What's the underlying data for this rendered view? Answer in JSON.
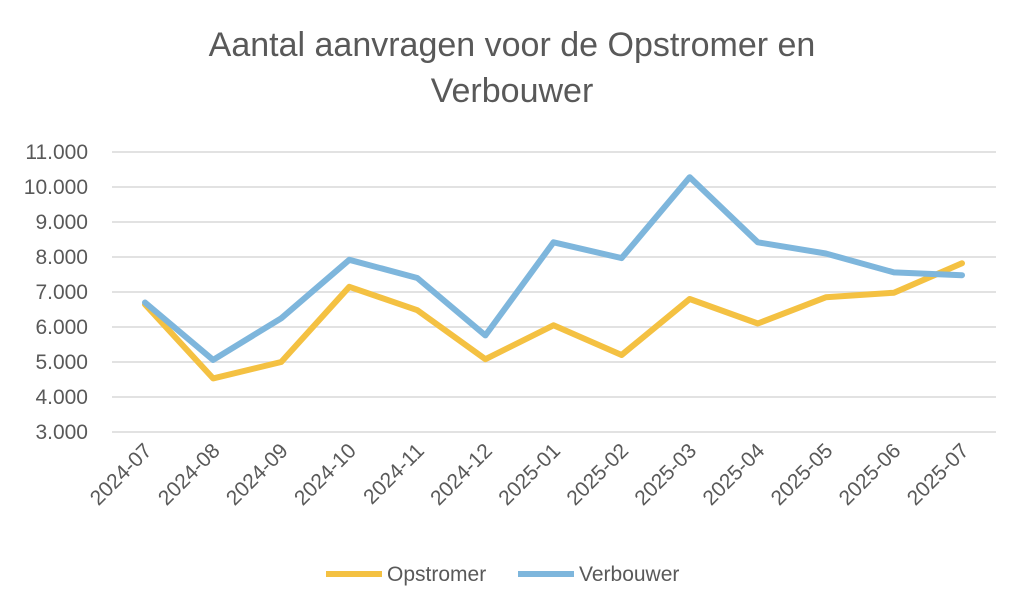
{
  "chart_data": {
    "type": "line",
    "title_lines": [
      "Aantal aanvragen voor de Opstromer en",
      "Verbouwer"
    ],
    "categories": [
      "2024-07",
      "2024-08",
      "2024-09",
      "2024-10",
      "2024-11",
      "2024-12",
      "2025-01",
      "2025-02",
      "2025-03",
      "2025-04",
      "2025-05",
      "2025-06",
      "2025-07"
    ],
    "series": [
      {
        "name": "Opstromer",
        "color": "#F4C142",
        "values": [
          6650,
          4530,
          5000,
          7150,
          6480,
          5080,
          6050,
          5200,
          6800,
          6100,
          6850,
          6980,
          7820
        ]
      },
      {
        "name": "Verbouwer",
        "color": "#7EB6DC",
        "values": [
          6700,
          5060,
          6250,
          7920,
          7400,
          5760,
          8420,
          7970,
          10280,
          8420,
          8100,
          7560,
          7480
        ]
      }
    ],
    "y_ticks": [
      "3.000",
      "4.000",
      "5.000",
      "6.000",
      "7.000",
      "8.000",
      "9.000",
      "10.000",
      "11.000"
    ],
    "ylim": [
      3000,
      11000
    ],
    "grid": true,
    "legend_position": "bottom"
  }
}
